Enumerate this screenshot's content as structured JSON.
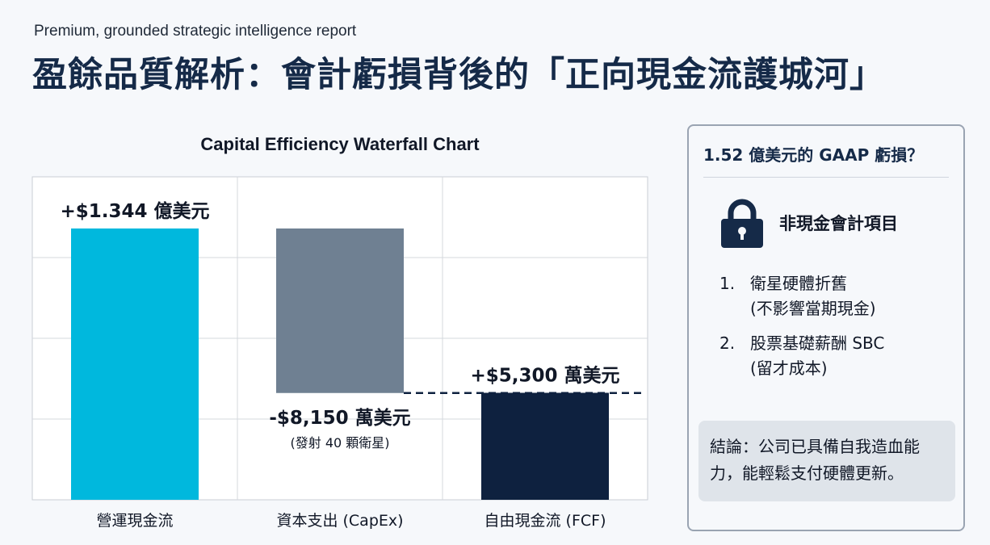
{
  "header": {
    "subtitle": "Premium, grounded strategic intelligence report",
    "title": "盈餘品質解析：會計虧損背後的「正向現金流護城河」"
  },
  "chart_data": {
    "type": "bar",
    "subtype": "waterfall",
    "title": "Capital Efficiency Waterfall Chart",
    "categories": [
      "營運現金流",
      "資本支出 (CapEx)",
      "自由現金流 (FCF)"
    ],
    "values_usd_millions": [
      134.4,
      -81.5,
      53.0
    ],
    "data_labels": [
      "+$1.344 億美元",
      "-$8,150 萬美元",
      "+$5,300 萬美元"
    ],
    "annotations": [
      "(發射 40 顆衛星)"
    ],
    "ylim": [
      0,
      160
    ],
    "grid": true,
    "colors": [
      "#00b8dd",
      "#6f8092",
      "#0e213f"
    ]
  },
  "panel": {
    "question": "1.52 億美元的 GAAP 虧損？",
    "icon": "lock-icon",
    "lock_label": "非現金會計項目",
    "items": [
      {
        "num": "1.",
        "line1": "衛星硬體折舊",
        "line2": "(不影響當期現金)"
      },
      {
        "num": "2.",
        "line1": "股票基礎薪酬 SBC",
        "line2": "(留才成本)"
      }
    ],
    "conclusion": "結論：公司已具備自我造血能力，能輕鬆支付硬體更新。"
  }
}
